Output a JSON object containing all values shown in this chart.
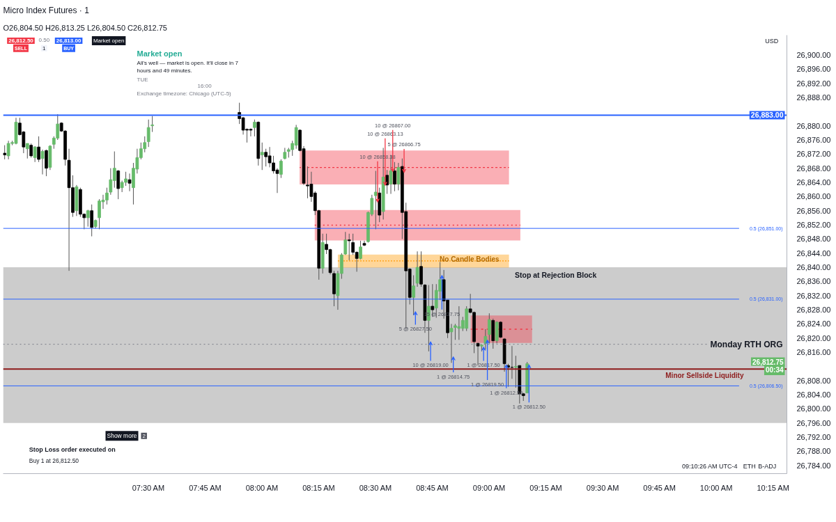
{
  "chart_data": {
    "type": "candlestick",
    "title": "Micro Index Futures · 1",
    "subtitle": "O26,804.50 H26,813.25 L26,804.50 C26,812.75",
    "x": [
      6.8667,
      6.8833,
      6.9,
      6.9167,
      6.9333,
      6.95,
      6.9667,
      6.9833,
      7,
      7.0167,
      7.0333,
      7.05,
      7.0667,
      7.0833,
      7.1,
      7.1167,
      7.1333,
      7.15,
      7.1667,
      7.1833,
      7.2,
      7.2167,
      7.2333,
      7.25,
      7.2667,
      7.2833,
      7.3,
      7.3167,
      7.3333,
      7.35,
      7.3667,
      7.3833,
      7.4,
      7.4167,
      7.4333,
      7.45,
      7.4667,
      7.4833,
      7.5,
      7.5167,
      7.9,
      7.9167,
      7.9333,
      7.95,
      7.9667,
      7.9833,
      8,
      8.0167,
      8.0333,
      8.05,
      8.0667,
      8.0833,
      8.1,
      8.1167,
      8.1333,
      8.15,
      8.1667,
      8.1833,
      8.2,
      8.2167,
      8.2333,
      8.25,
      8.2667,
      8.2833,
      8.3,
      8.3167,
      8.3333,
      8.35,
      8.3667,
      8.3833,
      8.4,
      8.4167,
      8.4333,
      8.45,
      8.4667,
      8.4833,
      8.5,
      8.5167,
      8.5333,
      8.55,
      8.5667,
      8.5833,
      8.6,
      8.6167,
      8.6333,
      8.65,
      8.6667,
      8.6833,
      8.7,
      8.7167,
      8.7333,
      8.75,
      8.7667,
      8.7833,
      8.8,
      8.8167,
      8.8333,
      8.85,
      8.8667,
      8.8833,
      8.9,
      8.9167,
      8.9333,
      8.95,
      8.9667,
      8.9833,
      9,
      9.0167,
      9.0333,
      9.05,
      9.0667,
      9.0833,
      9.1,
      9.1167,
      9.1333,
      9.15,
      9.1667
    ],
    "ohlc": [
      [
        26872.25,
        26874.5,
        26870.5,
        26871.75
      ],
      [
        26871.5,
        26875.75,
        26870.5,
        26875
      ],
      [
        26875,
        26875.75,
        26874.5,
        26875.25
      ],
      [
        26875,
        26882.25,
        26874.75,
        26881
      ],
      [
        26880.75,
        26882.25,
        26877.25,
        26877.5
      ],
      [
        26878.25,
        26878.5,
        26872.25,
        26874
      ],
      [
        26873.5,
        26875,
        26870.75,
        26875
      ],
      [
        26874.5,
        26875,
        26871,
        26871.5
      ],
      [
        26871,
        26874.25,
        26869.75,
        26874
      ],
      [
        26874,
        26877,
        26869.75,
        26870.5
      ],
      [
        26870.75,
        26873.25,
        26866.25,
        26872.75
      ],
      [
        26873,
        26873.25,
        26865.75,
        26868
      ],
      [
        26868.25,
        26874.5,
        26867.5,
        26874.25
      ],
      [
        26874.75,
        26877,
        26873.5,
        26876.5
      ],
      [
        26876.5,
        26883.25,
        26876,
        26880.5
      ],
      [
        26880.75,
        26881,
        26878.25,
        26878.5
      ],
      [
        26878.5,
        26878.75,
        26868.75,
        26870.5
      ],
      [
        26870.25,
        26873.5,
        26839,
        26862.5
      ],
      [
        26862.5,
        26866,
        26854.25,
        26855.5
      ],
      [
        26856,
        26863.25,
        26854.5,
        26862.75
      ],
      [
        26862,
        26862.5,
        26854.25,
        26855
      ],
      [
        26855,
        26855.25,
        26850.75,
        26854
      ],
      [
        26854,
        26856.25,
        26851.5,
        26856
      ],
      [
        26856,
        26857.75,
        26848.75,
        26851.25
      ],
      [
        26851.5,
        26853.5,
        26851,
        26853.25
      ],
      [
        26854,
        26859.25,
        26850.75,
        26858.75
      ],
      [
        26858.5,
        26860.5,
        26856.5,
        26859
      ],
      [
        26859,
        26862.5,
        26857.75,
        26861
      ],
      [
        26861.25,
        26868,
        26860.5,
        26864.75
      ],
      [
        26864.5,
        26872.75,
        26862.5,
        26868
      ],
      [
        26867.25,
        26867.5,
        26859.25,
        26862.25
      ],
      [
        26862.5,
        26864.5,
        26861.25,
        26864
      ],
      [
        26864,
        26867,
        26863,
        26865
      ],
      [
        26864.75,
        26866.5,
        26861.5,
        26863.75
      ],
      [
        26862.5,
        26869.5,
        26857.75,
        26868
      ],
      [
        26867.75,
        26873.5,
        26866.5,
        26871
      ],
      [
        26871,
        26875.25,
        26870.5,
        26873.5
      ],
      [
        26873.5,
        26877,
        26872.5,
        26875.25
      ],
      [
        26875.5,
        26881.75,
        26874,
        26879.5
      ],
      [
        26880,
        26882.75,
        26878.25,
        26880.25
      ],
      [
        26883.75,
        26886.5,
        26880.5,
        26882
      ],
      [
        26882.25,
        26882.5,
        26877.5,
        26878.75
      ],
      [
        26879,
        26879.25,
        26875.25,
        26878.75
      ],
      [
        26879,
        26879.25,
        26877,
        26878.75
      ],
      [
        26879.5,
        26881.75,
        26877,
        26881
      ],
      [
        26881,
        26881.25,
        26868.75,
        26870.75
      ],
      [
        26871.75,
        26875.25,
        26867.5,
        26872.5
      ],
      [
        26872.5,
        26873.5,
        26868.5,
        26871.25
      ],
      [
        26871.5,
        26874,
        26868.25,
        26869.5
      ],
      [
        26869.5,
        26871.5,
        26866.5,
        26867.25
      ],
      [
        26867.5,
        26868,
        26861,
        26866.5
      ],
      [
        26866.25,
        26870.5,
        26865.25,
        26870
      ],
      [
        26870.75,
        26873.75,
        26870.5,
        26872.5
      ],
      [
        26872.75,
        26873.75,
        26871,
        26873.25
      ],
      [
        26873.25,
        26875.75,
        26871.5,
        26875
      ],
      [
        26874.5,
        26880.25,
        26873.5,
        26879.5
      ],
      [
        26878.75,
        26879,
        26872.75,
        26873
      ],
      [
        26873.5,
        26874.25,
        26863.25,
        26863.75
      ],
      [
        26863.25,
        26868.5,
        26859.5,
        26863
      ],
      [
        26863.5,
        26867,
        26858.5,
        26860
      ],
      [
        26861,
        26861.5,
        26854.75,
        26856
      ],
      [
        26856,
        26856.25,
        26836.5,
        26839.75
      ],
      [
        26839.75,
        26849.5,
        26838.25,
        26847
      ],
      [
        26846.5,
        26849.5,
        26843.75,
        26845
      ],
      [
        26845,
        26845.25,
        26838,
        26838.5
      ],
      [
        26838.25,
        26839,
        26829,
        26832.5
      ],
      [
        26832,
        26839,
        26828,
        26838.25
      ],
      [
        26838.25,
        26844,
        26836.75,
        26843.5
      ],
      [
        26843.75,
        26850,
        26843.5,
        26847.75
      ],
      [
        26847.75,
        26849.5,
        26842,
        26847.5
      ],
      [
        26847,
        26849.5,
        26843.5,
        26844.25
      ],
      [
        26844.25,
        26844.5,
        26838.75,
        26842.5
      ],
      [
        26842.5,
        26847.5,
        26842.25,
        26845.75
      ],
      [
        26846.75,
        26847.5,
        26846,
        26846.25
      ],
      [
        26847.25,
        26855.75,
        26847,
        26855.5
      ],
      [
        26855,
        26860.5,
        26854.5,
        26859.5
      ],
      [
        26860.25,
        26867.25,
        26850.75,
        26861.25
      ],
      [
        26861,
        26862.5,
        26852.75,
        26854.75
      ],
      [
        26855.75,
        26873.75,
        26853.5,
        26865.5
      ],
      [
        26866,
        26867.5,
        26860.75,
        26863.25
      ],
      [
        26863.5,
        26871.75,
        26860.75,
        26867.25
      ],
      [
        26867.25,
        26869.75,
        26861.5,
        26863.5
      ],
      [
        26863.5,
        26869.5,
        26861.75,
        26868.25
      ],
      [
        26868.5,
        26870.75,
        26848,
        26855.5
      ],
      [
        26855.75,
        26858.25,
        26822.75,
        26839
      ],
      [
        26839.5,
        26839.75,
        26829.5,
        26831.5
      ],
      [
        26831.5,
        26837.75,
        26826.5,
        26834.75
      ],
      [
        26835.5,
        26844.5,
        26834.5,
        26840
      ],
      [
        26840.25,
        26844.5,
        26834.5,
        26835.25
      ],
      [
        26835,
        26835.25,
        26821.5,
        26825
      ],
      [
        26825,
        26835,
        26816.25,
        26829
      ],
      [
        26829,
        26835.25,
        26826,
        26828
      ],
      [
        26828.5,
        26835.25,
        26825.75,
        26833.5
      ],
      [
        26833.25,
        26841.5,
        26830.75,
        26836.5
      ],
      [
        26836.5,
        26839.25,
        26825.5,
        26830.5
      ],
      [
        26830.75,
        26830.75,
        26820,
        26821.5
      ],
      [
        26821.75,
        26824,
        26813,
        26822.75
      ],
      [
        26823,
        26824,
        26819.5,
        26823.5
      ],
      [
        26822.75,
        26829,
        26819.5,
        26823.25
      ],
      [
        26822.75,
        26826,
        26822,
        26825
      ],
      [
        26822.75,
        26829,
        26822,
        26828.25
      ],
      [
        26828.25,
        26832.5,
        26827,
        26827.25
      ],
      [
        26827.25,
        26827.5,
        26815.75,
        26819
      ],
      [
        26818.5,
        26818.75,
        26812.25,
        26817.75
      ],
      [
        26817.75,
        26818.25,
        26816.25,
        26818
      ],
      [
        26818.5,
        26822.5,
        26816.75,
        26820.5
      ],
      [
        26821,
        26827,
        26818.5,
        26825.25
      ],
      [
        26825,
        26825.5,
        26817,
        26819.25
      ],
      [
        26819.25,
        26824.75,
        26818.5,
        26824.5
      ],
      [
        26824.5,
        26824.75,
        26820,
        26820.25
      ],
      [
        26819.75,
        26820,
        26810.5,
        26812.75
      ],
      [
        26812.25,
        26812.75,
        26806.25,
        26811.75
      ],
      [
        26811.75,
        26817.75,
        26808.5,
        26811.75
      ],
      [
        26811.75,
        26815,
        26806,
        26812
      ],
      [
        26812.25,
        26812.25,
        26801.5,
        26804.25
      ],
      [
        26804.25,
        26804.5,
        26802.25,
        26803.75
      ],
      [
        26804.5,
        26813.25,
        26804.5,
        26812.75
      ]
    ],
    "colors": [
      "#000000",
      "#66bb6a",
      "#66bb6a",
      "#66bb6a",
      "#000000",
      "#000000",
      "#66bb6a",
      "#000000",
      "#66bb6a",
      "#000000",
      "#66bb6a",
      "#000000",
      "#66bb6a",
      "#66bb6a",
      "#66bb6a",
      "#000000",
      "#000000",
      "#000000",
      "#000000",
      "#66bb6a",
      "#000000",
      "#000000",
      "#66bb6a",
      "#000000",
      "#66bb6a",
      "#66bb6a",
      "#66bb6a",
      "#66bb6a",
      "#66bb6a",
      "#66bb6a",
      "#000000",
      "#66bb6a",
      "#66bb6a",
      "#000000",
      "#66bb6a",
      "#66bb6a",
      "#66bb6a",
      "#66bb6a",
      "#66bb6a",
      "#66bb6a",
      "#000000",
      "#000000",
      "#000000",
      "#000000",
      "#66bb6a",
      "#000000",
      "#66bb6a",
      "#000000",
      "#000000",
      "#000000",
      "#000000",
      "#66bb6a",
      "#66bb6a",
      "#66bb6a",
      "#66bb6a",
      "#66bb6a",
      "#000000",
      "#000000",
      "#000000",
      "#000000",
      "#000000",
      "#000000",
      "#66bb6a",
      "#000000",
      "#000000",
      "#000000",
      "#66bb6a",
      "#66bb6a",
      "#66bb6a",
      "#000000",
      "#000000",
      "#000000",
      "#66bb6a",
      "#000000",
      "#66bb6a",
      "#66bb6a",
      "#66bb6a",
      "#000000",
      "#66bb6a",
      "#000000",
      "#66bb6a",
      "#000000",
      "#66bb6a",
      "#000000",
      "#000000",
      "#000000",
      "#66bb6a",
      "#66bb6a",
      "#000000",
      "#000000",
      "#66bb6a",
      "#000000",
      "#66bb6a",
      "#66bb6a",
      "#000000",
      "#000000",
      "#66bb6a",
      "#66bb6a",
      "#66bb6a",
      "#66bb6a",
      "#66bb6a",
      "#000000",
      "#000000",
      "#000000",
      "#66bb6a",
      "#66bb6a",
      "#66bb6a",
      "#000000",
      "#66bb6a",
      "#000000",
      "#000000",
      "#000000",
      "#000000",
      "#66bb6a",
      "#000000",
      "#000000",
      "#66bb6a"
    ],
    "xlim": [
      6.86,
      10.31
    ],
    "ylim": [
      26781.7,
      26905.6
    ],
    "xticks": [
      {
        "value": 7.5,
        "label": "07:30 AM"
      },
      {
        "value": 7.75,
        "label": "07:45 AM"
      },
      {
        "value": 8,
        "label": "08:00 AM"
      },
      {
        "value": 8.25,
        "label": "08:15 AM"
      },
      {
        "value": 8.5,
        "label": "08:30 AM"
      },
      {
        "value": 8.75,
        "label": "08:45 AM"
      },
      {
        "value": 9,
        "label": "09:00 AM"
      },
      {
        "value": 9.25,
        "label": "09:15 AM"
      },
      {
        "value": 9.5,
        "label": "09:30 AM"
      },
      {
        "value": 9.75,
        "label": "09:45 AM"
      },
      {
        "value": 10,
        "label": "10:00 AM"
      },
      {
        "value": 10.25,
        "label": "10:15 AM"
      }
    ],
    "yticks": [
      {
        "value": 26784,
        "label": "26,784.00"
      },
      {
        "value": 26788,
        "label": "26,788.00"
      },
      {
        "value": 26792,
        "label": "26,792.00"
      },
      {
        "value": 26796,
        "label": "26,796.00"
      },
      {
        "value": 26800,
        "label": "26,800.00"
      },
      {
        "value": 26804,
        "label": "26,804.00"
      },
      {
        "value": 26808,
        "label": "26,808.00"
      },
      {
        "value": 26816,
        "label": "26,816.00"
      },
      {
        "value": 26820,
        "label": "26,820.00"
      },
      {
        "value": 26824,
        "label": "26,824.00"
      },
      {
        "value": 26828,
        "label": "26,828.00"
      },
      {
        "value": 26832,
        "label": "26,832.00"
      },
      {
        "value": 26836,
        "label": "26,836.00"
      },
      {
        "value": 26840,
        "label": "26,840.00"
      },
      {
        "value": 26844,
        "label": "26,844.00"
      },
      {
        "value": 26848,
        "label": "26,848.00"
      },
      {
        "value": 26852,
        "label": "26,852.00"
      },
      {
        "value": 26856,
        "label": "26,856.00"
      },
      {
        "value": 26860,
        "label": "26,860.00"
      },
      {
        "value": 26864,
        "label": "26,864.00"
      },
      {
        "value": 26868,
        "label": "26,868.00"
      },
      {
        "value": 26872,
        "label": "26,872.00"
      },
      {
        "value": 26876,
        "label": "26,876.00"
      },
      {
        "value": 26880,
        "label": "26,880.00"
      },
      {
        "value": 26888,
        "label": "26,888.00"
      },
      {
        "value": 26892,
        "label": "26,892.00"
      },
      {
        "value": 26896,
        "label": "26,896.00"
      },
      {
        "value": 26900,
        "label": "26,900.00"
      }
    ],
    "series": [
      {
        "type": "line",
        "x": [
          8.165,
          9.0867
        ],
        "values": [
          26868.2,
          26868.2
        ],
        "lower": [
          26863.4,
          26863.4
        ],
        "upper": [
          26873,
          26873
        ],
        "color": "#f23645",
        "line_style": "dotted"
      },
      {
        "type": "line",
        "x": [
          8.2317,
          9.1367
        ],
        "values": [
          26851.9,
          26851.9
        ],
        "lower": [
          26847.6,
          26847.6
        ],
        "upper": [
          26856.2,
          26856.2
        ],
        "color": "#f23645",
        "line_style": "dotted"
      },
      {
        "type": "line",
        "name": "No Candle Bodies",
        "x": [
          8.3333,
          9.0867
        ],
        "values": [
          26841.8,
          26841.8
        ],
        "lower": [
          26839.9,
          26839.9
        ],
        "upper": [
          26843.6,
          26843.6
        ],
        "color": "#ff9800",
        "line_style": "dotted"
      },
      {
        "type": "line",
        "x": [
          8.9183,
          9.1883
        ],
        "values": [
          26822.5,
          26822.5
        ],
        "lower": [
          26818.6,
          26818.6
        ],
        "upper": [
          26826.4,
          26826.4
        ],
        "color": "#f23645",
        "line_style": "dotted"
      }
    ],
    "bands": [
      {
        "axis": "y",
        "from": 26796,
        "to": 26840,
        "label": "Stop at Rejection Block",
        "color": "#cccccc"
      }
    ],
    "ref_lines": [
      {
        "axis": "y",
        "value": 26883,
        "label": "26,883.00",
        "color": "#2962ff"
      },
      {
        "axis": "y",
        "value": 26851,
        "label": "0.5 (26,851.00)",
        "color": "#2962ff"
      },
      {
        "axis": "y",
        "value": 26831,
        "label": "0.5 (26,831.00)",
        "color": "#2962ff"
      },
      {
        "axis": "y",
        "value": 26806.5,
        "label": "0.5 (26,806.50)",
        "color": "#2962ff"
      },
      {
        "axis": "y",
        "value": 26818.25,
        "label": "Monday RTH ORG",
        "color": "#787b86",
        "line_style": "dotted"
      },
      {
        "axis": "y",
        "value": 26811.25,
        "label": "Minor Sellside Liquidity",
        "color": "#8e1b1b"
      }
    ],
    "annotations": [
      {
        "text": "10 @ 26858.38",
        "x": 8.5,
        "y": 26858.38
      },
      {
        "text": "10 @ 26863.13",
        "x": 8.5333,
        "y": 26863.13
      },
      {
        "text": "10 @ 26867.00",
        "x": 8.5667,
        "y": 26867
      },
      {
        "text": "5 @ 26866.75",
        "x": 8.6167,
        "y": 26866.75
      },
      {
        "text": "5 @ 26827.50",
        "x": 8.6667,
        "y": 26827.5
      },
      {
        "text": "10 @ 26819.00",
        "x": 8.7333,
        "y": 26819
      },
      {
        "text": "15 @ 26837.75",
        "x": 8.7833,
        "y": 26837.75
      },
      {
        "text": "1 @ 26814.75",
        "x": 8.8333,
        "y": 26814.75
      },
      {
        "text": "1 @ 26817.50",
        "x": 8.9667,
        "y": 26817.5
      },
      {
        "text": "1 @ 26819.50",
        "x": 8.9833,
        "y": 26819.5
      },
      {
        "text": "1 @ 26812.50",
        "x": 9.0667,
        "y": 26812.5
      },
      {
        "text": "1 @ 26812.50",
        "x": 9.1667,
        "y": 26812.5
      },
      "Market open",
      "Market open",
      "All's well — market is open. It'll close in 7 hours and 49 minutes.",
      "TUE",
      "16:00",
      "Exchange timezone: Chicago (UTC-5)",
      "26,812.50",
      "SELL",
      "0.50",
      "1",
      "26,813.00",
      "BUY",
      "Stop Loss order executed on",
      "Buy 1 at 26,812.50",
      "Show more",
      "2",
      "26,812.75",
      "00:34",
      "09:10:26 AM UTC-4",
      "ETH",
      "B-ADJ",
      "USD"
    ]
  }
}
